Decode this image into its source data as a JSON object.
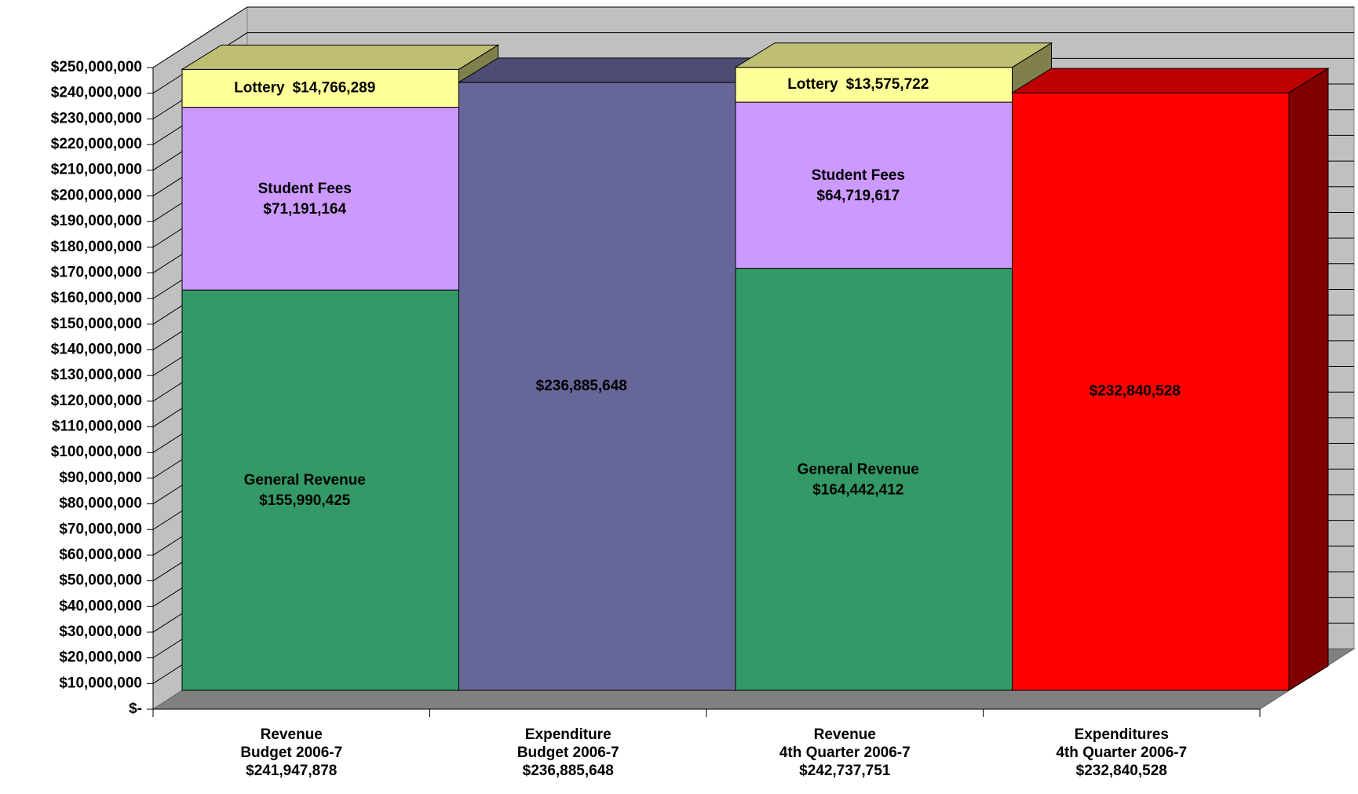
{
  "chart_data": {
    "type": "bar3d_stacked",
    "categories": [
      [
        "Revenue",
        "Budget 2006-7",
        "$241,947,878"
      ],
      [
        "Expenditure",
        "Budget 2006-7",
        "$236,885,648"
      ],
      [
        "Revenue",
        "4th Quarter 2006-7",
        "$242,737,751"
      ],
      [
        "Expenditures",
        "4th Quarter 2006-7",
        "$232,840,528"
      ]
    ],
    "series": [
      {
        "name": "General Revenue",
        "color": "#339966",
        "values": [
          155990425,
          null,
          164442412,
          null
        ],
        "value_labels": [
          "$155,990,425",
          null,
          "$164,442,412",
          null
        ]
      },
      {
        "name": "Student Fees",
        "color": "#cc99ff",
        "values": [
          71191164,
          null,
          64719617,
          null
        ],
        "value_labels": [
          "$71,191,164",
          null,
          "$64,719,617",
          null
        ]
      },
      {
        "name": "Lottery",
        "color": "#ffff99",
        "values": [
          14766289,
          null,
          13575722,
          null
        ],
        "value_labels": [
          "$14,766,289",
          null,
          "$13,575,722",
          null
        ]
      },
      {
        "colors": [
          null,
          "#666699",
          null,
          "#ff0000"
        ],
        "values": [
          null,
          236885648,
          null,
          232840528
        ],
        "value_labels": [
          null,
          "$236,885,648",
          null,
          "$232,840,528"
        ]
      }
    ],
    "ylim": [
      0,
      250000000
    ],
    "yticks": [
      {
        "value": 0,
        "label": "$-"
      },
      {
        "value": 10000000,
        "label": "$10,000,000"
      },
      {
        "value": 20000000,
        "label": "$20,000,000"
      },
      {
        "value": 30000000,
        "label": "$30,000,000"
      },
      {
        "value": 40000000,
        "label": "$40,000,000"
      },
      {
        "value": 50000000,
        "label": "$50,000,000"
      },
      {
        "value": 60000000,
        "label": "$60,000,000"
      },
      {
        "value": 70000000,
        "label": "$70,000,000"
      },
      {
        "value": 80000000,
        "label": "$80,000,000"
      },
      {
        "value": 90000000,
        "label": "$90,000,000"
      },
      {
        "value": 100000000,
        "label": "$100,000,000"
      },
      {
        "value": 110000000,
        "label": "$110,000,000"
      },
      {
        "value": 120000000,
        "label": "$120,000,000"
      },
      {
        "value": 130000000,
        "label": "$130,000,000"
      },
      {
        "value": 140000000,
        "label": "$140,000,000"
      },
      {
        "value": 150000000,
        "label": "$150,000,000"
      },
      {
        "value": 160000000,
        "label": "$160,000,000"
      },
      {
        "value": 170000000,
        "label": "$170,000,000"
      },
      {
        "value": 180000000,
        "label": "$180,000,000"
      },
      {
        "value": 190000000,
        "label": "$190,000,000"
      },
      {
        "value": 200000000,
        "label": "$200,000,000"
      },
      {
        "value": 210000000,
        "label": "$210,000,000"
      },
      {
        "value": 220000000,
        "label": "$220,000,000"
      },
      {
        "value": 230000000,
        "label": "$230,000,000"
      },
      {
        "value": 240000000,
        "label": "$240,000,000"
      },
      {
        "value": 250000000,
        "label": "$250,000,000"
      }
    ],
    "grid": true
  }
}
